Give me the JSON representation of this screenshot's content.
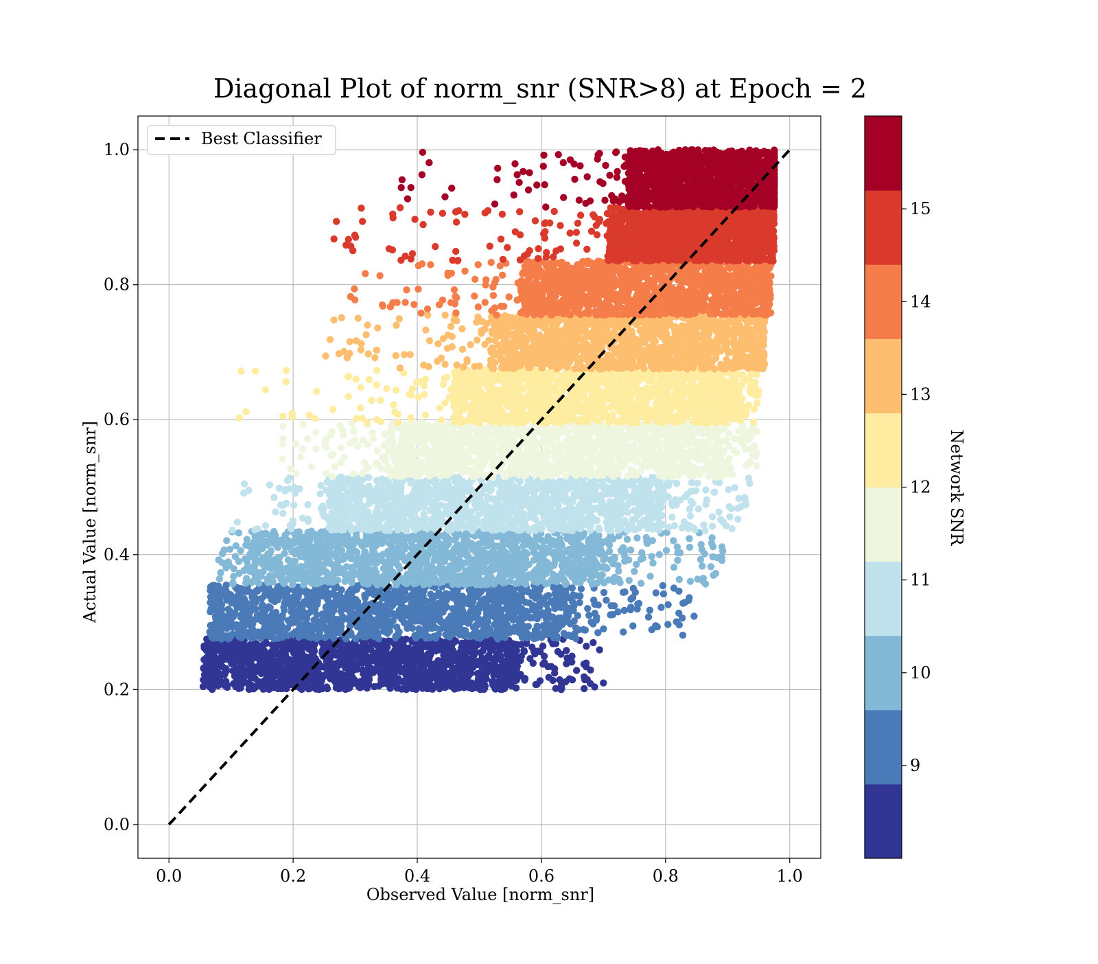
{
  "chart_data": {
    "type": "scatter",
    "title": "Diagonal Plot of norm_snr (SNR>8) at Epoch = 2",
    "xlabel": "Observed Value [norm_snr]",
    "ylabel": "Actual Value [norm_snr]",
    "xlim": [
      -0.05,
      1.05
    ],
    "ylim": [
      -0.05,
      1.05
    ],
    "xticks": [
      "0.0",
      "0.2",
      "0.4",
      "0.6",
      "0.8",
      "1.0"
    ],
    "yticks": [
      "0.0",
      "0.2",
      "0.4",
      "0.6",
      "0.8",
      "1.0"
    ],
    "grid": true,
    "legend_position": "top-left",
    "reference_line": {
      "name": "Best Classifier",
      "from": [
        0,
        0
      ],
      "to": [
        1,
        1
      ],
      "style": "dashed",
      "color": "#000000"
    },
    "colorbar": {
      "label": "Network SNR",
      "range": [
        8,
        16
      ],
      "ticks": [
        "9",
        "10",
        "11",
        "12",
        "13",
        "14",
        "15"
      ],
      "bands": [
        {
          "range": [
            8,
            8.8
          ],
          "color": "#313695"
        },
        {
          "range": [
            8.8,
            9.6
          ],
          "color": "#4a7ab8"
        },
        {
          "range": [
            9.6,
            10.4
          ],
          "color": "#83b8d7"
        },
        {
          "range": [
            10.4,
            11.2
          ],
          "color": "#bfe2ed"
        },
        {
          "range": [
            11.2,
            12.0
          ],
          "color": "#eef6df"
        },
        {
          "range": [
            12.0,
            12.8
          ],
          "color": "#feeda0"
        },
        {
          "range": [
            12.8,
            13.6
          ],
          "color": "#fdbf6f"
        },
        {
          "range": [
            13.6,
            14.4
          ],
          "color": "#f47d4a"
        },
        {
          "range": [
            14.4,
            15.2
          ],
          "color": "#d93a2b"
        },
        {
          "range": [
            15.2,
            16.0
          ],
          "color": "#a50026"
        }
      ]
    },
    "point_bands": [
      {
        "y": [
          0.2,
          0.275
        ],
        "x_core": [
          0.07,
          0.56
        ],
        "x_spread": [
          0.055,
          0.7
        ],
        "color": "#313695",
        "count": 1500
      },
      {
        "y": [
          0.275,
          0.355
        ],
        "x_core": [
          0.08,
          0.64
        ],
        "x_spread": [
          0.065,
          0.85
        ],
        "color": "#4a7ab8",
        "count": 1500
      },
      {
        "y": [
          0.355,
          0.435
        ],
        "x_core": [
          0.14,
          0.7
        ],
        "x_spread": [
          0.08,
          0.9
        ],
        "color": "#83b8d7",
        "count": 1500
      },
      {
        "y": [
          0.435,
          0.515
        ],
        "x_core": [
          0.26,
          0.79
        ],
        "x_spread": [
          0.1,
          0.94
        ],
        "color": "#bfe2ed",
        "count": 1500
      },
      {
        "y": [
          0.515,
          0.595
        ],
        "x_core": [
          0.36,
          0.88
        ],
        "x_spread": [
          0.18,
          0.95
        ],
        "color": "#eef6df",
        "count": 1500
      },
      {
        "y": [
          0.595,
          0.675
        ],
        "x_core": [
          0.46,
          0.91
        ],
        "x_spread": [
          0.1,
          0.95
        ],
        "color": "#feeda0",
        "count": 1500
      },
      {
        "y": [
          0.675,
          0.755
        ],
        "x_core": [
          0.52,
          0.95
        ],
        "x_spread": [
          0.24,
          0.96
        ],
        "color": "#fdbf6f",
        "count": 1500
      },
      {
        "y": [
          0.755,
          0.835
        ],
        "x_core": [
          0.57,
          0.96
        ],
        "x_spread": [
          0.28,
          0.97
        ],
        "color": "#f47d4a",
        "count": 1500
      },
      {
        "y": [
          0.835,
          0.915
        ],
        "x_core": [
          0.71,
          0.97
        ],
        "x_spread": [
          0.26,
          0.975
        ],
        "color": "#d93a2b",
        "count": 1500
      },
      {
        "y": [
          0.915,
          1.0
        ],
        "x_core": [
          0.74,
          0.975
        ],
        "x_spread": [
          0.37,
          0.975
        ],
        "color": "#a50026",
        "count": 1500
      }
    ]
  }
}
